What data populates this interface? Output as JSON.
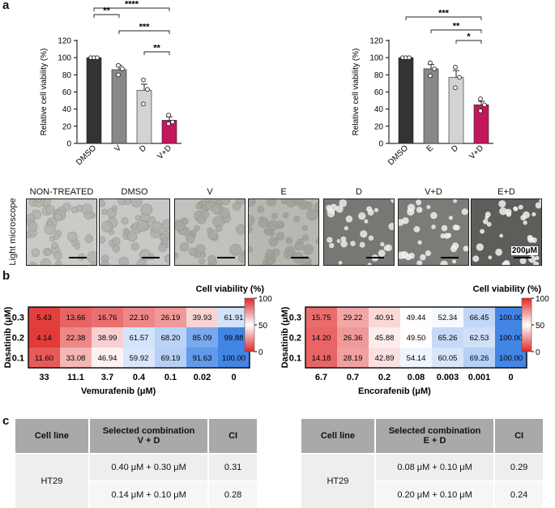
{
  "panel_letters": {
    "a": "a",
    "b": "b",
    "c": "c"
  },
  "chart_data": [
    {
      "type": "bar",
      "categories": [
        "DMSO",
        "V",
        "D",
        "V+D"
      ],
      "values": [
        100,
        86,
        62,
        27
      ],
      "errors": [
        0,
        5,
        7,
        4
      ],
      "points": [
        [
          100,
          100,
          100
        ],
        [
          80,
          87,
          91
        ],
        [
          46,
          63,
          74
        ],
        [
          23,
          25,
          33
        ]
      ],
      "colors": [
        "#333333",
        "#888888",
        "#d3d3d3",
        "#c2185b"
      ],
      "ylabel": "Relative cell viability (%)",
      "ylim": [
        0,
        120
      ],
      "yticks": [
        0,
        20,
        40,
        60,
        80,
        100,
        120
      ],
      "significance": [
        {
          "from": 0,
          "to": 1,
          "label": "**"
        },
        {
          "from": 0,
          "to": 3,
          "label": "****"
        },
        {
          "from": 1,
          "to": 3,
          "label": "***"
        },
        {
          "from": 2,
          "to": 3,
          "label": "**"
        }
      ]
    },
    {
      "type": "bar",
      "categories": [
        "DMSO",
        "E",
        "D",
        "V+D"
      ],
      "values": [
        100,
        87,
        77,
        45
      ],
      "errors": [
        0,
        5,
        8,
        4
      ],
      "points": [
        [
          100,
          100,
          100
        ],
        [
          79,
          87,
          94
        ],
        [
          65,
          77,
          89
        ],
        [
          38,
          45,
          52
        ]
      ],
      "colors": [
        "#333333",
        "#888888",
        "#d3d3d3",
        "#c2185b"
      ],
      "ylabel": "Relative cell viability (%)",
      "ylim": [
        0,
        120
      ],
      "yticks": [
        0,
        20,
        40,
        60,
        80,
        100,
        120
      ],
      "significance": [
        {
          "from": 0,
          "to": 3,
          "label": "***"
        },
        {
          "from": 1,
          "to": 3,
          "label": "**"
        },
        {
          "from": 2,
          "to": 3,
          "label": "*"
        }
      ]
    },
    {
      "type": "heatmap",
      "title": "Cell viability (%)",
      "ylabel": "Dasatinib (μM)",
      "xlabel": "Vemurafenib (μM)",
      "rows": [
        "0.3",
        "0.2",
        "0.1"
      ],
      "cols": [
        "33",
        "11.1",
        "3.7",
        "0.4",
        "0.1",
        "0.02",
        "0"
      ],
      "values": [
        [
          "5.43",
          "13.66",
          "16.76",
          "22.10",
          "26.19",
          "39.93",
          "61.91"
        ],
        [
          "4.14",
          "22.38",
          "38.99",
          "61.57",
          "68.20",
          "85.09",
          "99.88"
        ],
        [
          "11.60",
          "33.08",
          "46.94",
          "59.92",
          "69.19",
          "91.63",
          "100.00"
        ]
      ],
      "colorbar": {
        "max": "100",
        "mid": "50",
        "min": "0"
      }
    },
    {
      "type": "heatmap",
      "title": "Cell viability (%)",
      "ylabel": "Dasatinib (μM)",
      "xlabel": "Encorafenib (μM)",
      "rows": [
        "0.3",
        "0.2",
        "0.1"
      ],
      "cols": [
        "6.7",
        "0.7",
        "0.2",
        "0.08",
        "0.003",
        "0.001",
        "0"
      ],
      "values": [
        [
          "15.75",
          "29.22",
          "40.91",
          "49.44",
          "52.34",
          "66.45",
          "100.00"
        ],
        [
          "14.20",
          "26.36",
          "45.88",
          "49.50",
          "65.26",
          "62.53",
          "100.00"
        ],
        [
          "14.18",
          "28.19",
          "42.89",
          "54.14",
          "60.05",
          "69.26",
          "100.00"
        ]
      ],
      "colorbar": {
        "max": "100",
        "mid": "50",
        "min": "0"
      }
    }
  ],
  "microscopy": {
    "side_label": "Light microscope",
    "panels": [
      "NON-TREATED",
      "DMSO",
      "V",
      "E",
      "D",
      "V+D",
      "E+D"
    ],
    "scale_bar": "200μM"
  },
  "tables": [
    {
      "headers": [
        "Cell line",
        "Selected combination",
        "V + D",
        "CI"
      ],
      "cell_line": "HT29",
      "rows": [
        {
          "combination": "0.40 μM + 0.30 μM",
          "ci": "0.31"
        },
        {
          "combination": "0.14 μM + 0.10 μM",
          "ci": "0.28"
        }
      ]
    },
    {
      "headers": [
        "Cell line",
        "Selected combination",
        "E + D",
        "CI"
      ],
      "cell_line": "HT29",
      "rows": [
        {
          "combination": "0.08 μM + 0.10 μM",
          "ci": "0.29"
        },
        {
          "combination": "0.20 μM + 0.10 μM",
          "ci": "0.24"
        }
      ]
    }
  ]
}
